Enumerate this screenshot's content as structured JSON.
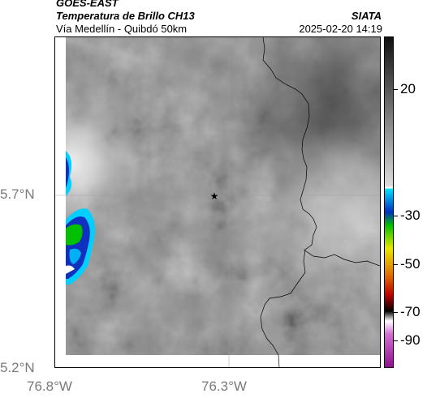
{
  "header": {
    "satellite": "GOES-EAST",
    "product": "Temperatura de Brillo CH13",
    "region": "Vía Medellín - Quibdó 50km",
    "org": "SIATA",
    "timestamp": "2025-02-20 14:19"
  },
  "map": {
    "lat_ticks": [
      "5.7°N",
      "5.2°N"
    ],
    "lon_ticks": [
      "76.8°W",
      "76.3°W"
    ],
    "gridlines": true,
    "marker": "star-marker"
  },
  "colorbar": {
    "ticks": [
      "20",
      "-30",
      "-50",
      "-70",
      "-90"
    ]
  },
  "colors": {
    "grayscale_top": "#1a1a1a",
    "grayscale_bottom": "#f4f4f4",
    "cold_cyan": "#00d0ff",
    "cold_blue": "#1030c0",
    "cold_green": "#00c000",
    "cold_yellow": "#e8e800",
    "cold_red": "#d02000",
    "cold_magenta": "#c040c0"
  }
}
